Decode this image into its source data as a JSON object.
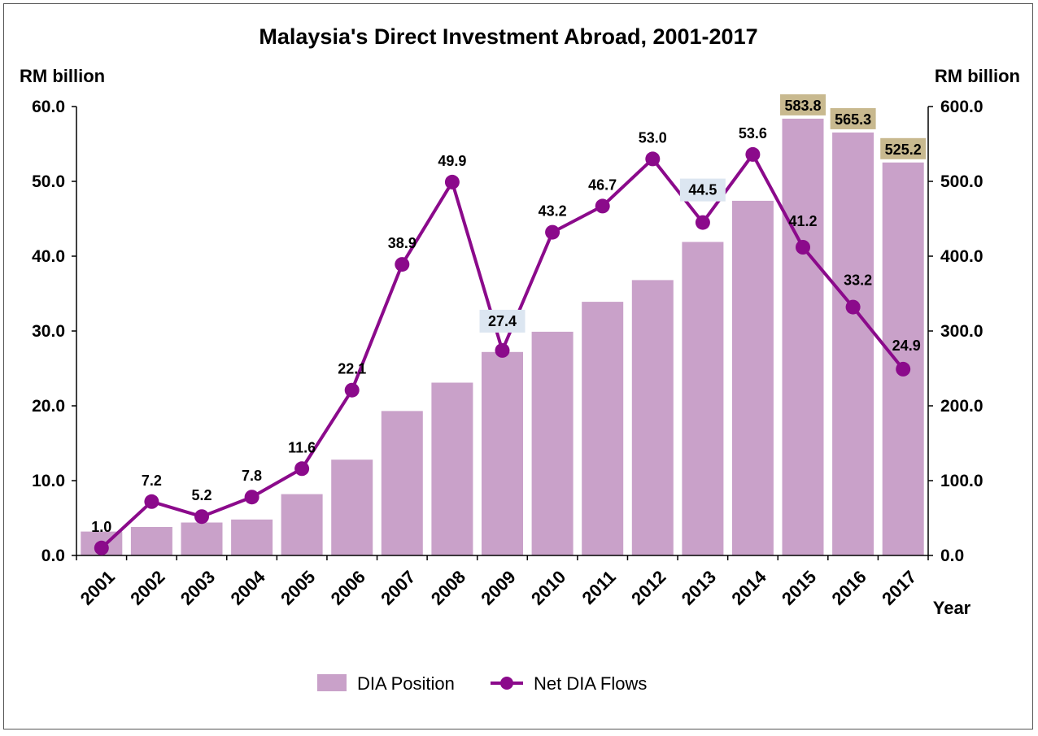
{
  "colors": {
    "bar": "#c9a1c9",
    "line": "#8b0a8b",
    "highlight_gold": "#c8b98f",
    "highlight_blue": "#dce6f1",
    "axis": "#000000"
  },
  "chart_data": {
    "type": "bar",
    "title": "Malaysia's Direct Investment Abroad, 2001-2017",
    "xlabel": "Year",
    "ylabel_left": "RM billion",
    "ylabel_right": "RM billion",
    "categories": [
      "2001",
      "2002",
      "2003",
      "2004",
      "2005",
      "2006",
      "2007",
      "2008",
      "2009",
      "2010",
      "2011",
      "2012",
      "2013",
      "2014",
      "2015",
      "2016",
      "2017"
    ],
    "ylim_left": [
      0,
      60
    ],
    "ylim_right": [
      0,
      600
    ],
    "yticks_left": [
      "0.0",
      "10.0",
      "20.0",
      "30.0",
      "40.0",
      "50.0",
      "60.0"
    ],
    "yticks_right": [
      "0.0",
      "100.0",
      "200.0",
      "300.0",
      "400.0",
      "500.0",
      "600.0"
    ],
    "grid": false,
    "legend_position": "bottom",
    "series": [
      {
        "name": "DIA Position",
        "type": "bar",
        "axis": "right",
        "values": [
          32,
          38,
          44,
          48,
          82,
          128,
          193,
          231,
          272,
          299,
          339,
          368,
          419,
          474,
          583.8,
          565.3,
          525.2
        ],
        "labels": [
          "",
          "",
          "",
          "",
          "",
          "",
          "",
          "",
          "",
          "",
          "",
          "",
          "",
          "",
          "583.8",
          "565.3",
          "525.2"
        ]
      },
      {
        "name": "Net DIA Flows",
        "type": "line",
        "axis": "left",
        "values": [
          1.0,
          7.2,
          5.2,
          7.8,
          11.6,
          22.1,
          38.9,
          49.9,
          27.4,
          43.2,
          46.7,
          53.0,
          44.5,
          53.6,
          41.2,
          33.2,
          24.9
        ],
        "labels": [
          "1.0",
          "7.2",
          "5.2",
          "7.8",
          "11.6",
          "22.1",
          "38.9",
          "49.9",
          "27.4",
          "43.2",
          "46.7",
          "53.0",
          "44.5",
          "53.6",
          "41.2",
          "33.2",
          "24.9"
        ]
      }
    ]
  }
}
